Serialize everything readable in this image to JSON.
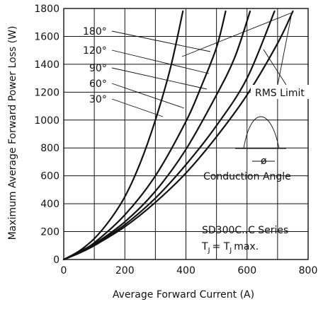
{
  "chart_data": {
    "type": "line",
    "title": "",
    "xlabel": "Average Forward Current (A)",
    "ylabel": "Maximum Average Forward Power Loss (W)",
    "xlim": [
      0,
      800
    ],
    "ylim": [
      0,
      1800
    ],
    "x_ticks": [
      0,
      200,
      400,
      600,
      800
    ],
    "y_ticks": [
      0,
      200,
      400,
      600,
      800,
      1000,
      1200,
      1400,
      1600,
      1800
    ],
    "grid": true,
    "series": [
      {
        "name": "30°",
        "points": [
          [
            0,
            0
          ],
          [
            50,
            60
          ],
          [
            100,
            150
          ],
          [
            150,
            280
          ],
          [
            200,
            450
          ],
          [
            250,
            690
          ],
          [
            300,
            1000
          ],
          [
            350,
            1380
          ],
          [
            390,
            1780
          ]
        ]
      },
      {
        "name": "60°",
        "points": [
          [
            0,
            0
          ],
          [
            50,
            55
          ],
          [
            100,
            120
          ],
          [
            200,
            320
          ],
          [
            300,
            600
          ],
          [
            400,
            990
          ],
          [
            450,
            1240
          ],
          [
            500,
            1520
          ],
          [
            530,
            1780
          ]
        ]
      },
      {
        "name": "90°",
        "points": [
          [
            0,
            0
          ],
          [
            50,
            50
          ],
          [
            100,
            110
          ],
          [
            200,
            270
          ],
          [
            300,
            490
          ],
          [
            400,
            790
          ],
          [
            500,
            1180
          ],
          [
            560,
            1450
          ],
          [
            610,
            1780
          ]
        ]
      },
      {
        "name": "120°",
        "points": [
          [
            0,
            0
          ],
          [
            50,
            48
          ],
          [
            100,
            105
          ],
          [
            200,
            250
          ],
          [
            300,
            440
          ],
          [
            400,
            680
          ],
          [
            500,
            960
          ],
          [
            600,
            1300
          ],
          [
            690,
            1780
          ]
        ]
      },
      {
        "name": "180°",
        "points": [
          [
            0,
            0
          ],
          [
            50,
            45
          ],
          [
            100,
            100
          ],
          [
            200,
            235
          ],
          [
            300,
            410
          ],
          [
            400,
            620
          ],
          [
            500,
            880
          ],
          [
            600,
            1180
          ],
          [
            700,
            1550
          ],
          [
            750,
            1780
          ]
        ]
      }
    ],
    "series_labels": [
      "180°",
      "120°",
      "90°",
      "60°",
      "30°"
    ],
    "annotations": {
      "rms_limit": "RMS Limit",
      "conduction_angle": "Conduction Angle",
      "phi_symbol": "ø",
      "series_line1": "SD300C..C Series",
      "tj_main": "T",
      "tj_sub": "J",
      "tj_eq": "= T",
      "tj_sub2": "J",
      "tj_max": "max."
    }
  }
}
